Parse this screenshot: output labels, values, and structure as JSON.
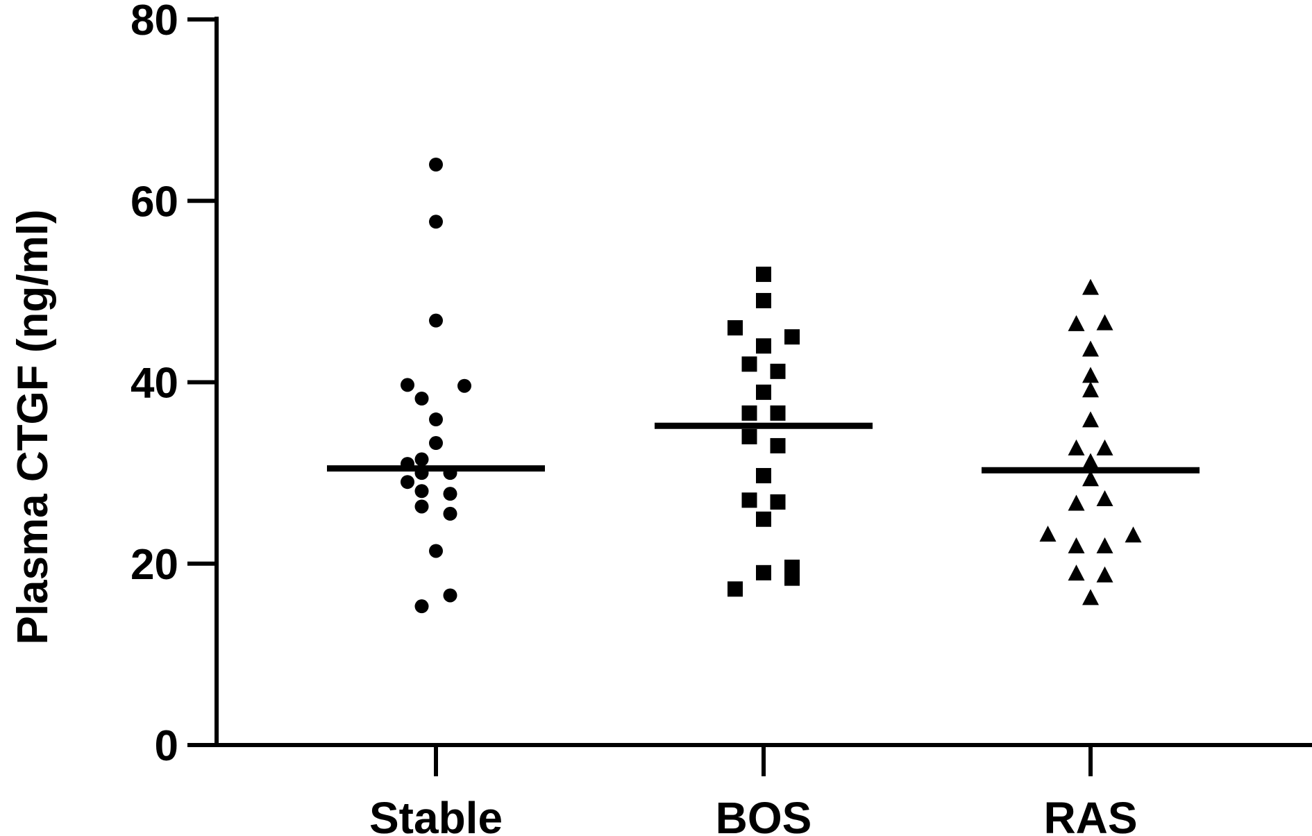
{
  "chart_data": {
    "type": "scatter",
    "chart_subtype": "dot-plot",
    "title": "",
    "xlabel": "",
    "ylabel": "Plasma CTGF (ng/ml)",
    "ylim": [
      0,
      80
    ],
    "yticks": [
      0,
      20,
      40,
      60,
      80
    ],
    "grid": false,
    "legend": "none",
    "categories": [
      "Stable",
      "BOS",
      "RAS"
    ],
    "series": [
      {
        "category": "Stable",
        "marker": "circle",
        "median": 30.5,
        "points": [
          {
            "offset": 0,
            "y": 64
          },
          {
            "offset": 0,
            "y": 57.7
          },
          {
            "offset": 0,
            "y": 46.8
          },
          {
            "offset": -1,
            "y": 39.7
          },
          {
            "offset": 1,
            "y": 39.6
          },
          {
            "offset": -0.5,
            "y": 38.2
          },
          {
            "offset": 0,
            "y": 35.9
          },
          {
            "offset": 0,
            "y": 33.3
          },
          {
            "offset": -1,
            "y": 31
          },
          {
            "offset": -0.5,
            "y": 31.5
          },
          {
            "offset": 0.5,
            "y": 30
          },
          {
            "offset": -0.5,
            "y": 30
          },
          {
            "offset": -1,
            "y": 29
          },
          {
            "offset": -0.5,
            "y": 28
          },
          {
            "offset": 0.5,
            "y": 27.7
          },
          {
            "offset": -0.5,
            "y": 26.3
          },
          {
            "offset": 0.5,
            "y": 25.5
          },
          {
            "offset": 0,
            "y": 21.4
          },
          {
            "offset": 0.5,
            "y": 16.5
          },
          {
            "offset": -0.5,
            "y": 15.3
          }
        ]
      },
      {
        "category": "BOS",
        "marker": "square",
        "median": 35.2,
        "points": [
          {
            "offset": 0,
            "y": 51.9
          },
          {
            "offset": 0,
            "y": 49
          },
          {
            "offset": -1,
            "y": 46
          },
          {
            "offset": 1,
            "y": 45
          },
          {
            "offset": 0,
            "y": 44
          },
          {
            "offset": -0.5,
            "y": 42
          },
          {
            "offset": 0.5,
            "y": 41.2
          },
          {
            "offset": 0,
            "y": 38.9
          },
          {
            "offset": -0.5,
            "y": 36.6
          },
          {
            "offset": 0.5,
            "y": 36.6
          },
          {
            "offset": -0.5,
            "y": 34
          },
          {
            "offset": 0.5,
            "y": 33
          },
          {
            "offset": 0,
            "y": 29.7
          },
          {
            "offset": -0.5,
            "y": 27
          },
          {
            "offset": 0.5,
            "y": 26.8
          },
          {
            "offset": 0,
            "y": 24.9
          },
          {
            "offset": 1,
            "y": 19.6
          },
          {
            "offset": 1,
            "y": 18.4
          },
          {
            "offset": 0,
            "y": 19
          },
          {
            "offset": -1,
            "y": 17.2
          }
        ]
      },
      {
        "category": "RAS",
        "marker": "triangle",
        "median": 30.3,
        "points": [
          {
            "offset": 0,
            "y": 50.4
          },
          {
            "offset": -0.5,
            "y": 46.4
          },
          {
            "offset": 0.5,
            "y": 46.5
          },
          {
            "offset": 0,
            "y": 43.6
          },
          {
            "offset": 0,
            "y": 40.7
          },
          {
            "offset": 0,
            "y": 39.1
          },
          {
            "offset": 0,
            "y": 35.8
          },
          {
            "offset": -0.5,
            "y": 32.7
          },
          {
            "offset": 0.5,
            "y": 32.7
          },
          {
            "offset": 0,
            "y": 31.2
          },
          {
            "offset": 0,
            "y": 29.3
          },
          {
            "offset": -0.5,
            "y": 26.6
          },
          {
            "offset": 0.5,
            "y": 27.1
          },
          {
            "offset": -1.5,
            "y": 23.2
          },
          {
            "offset": 1.5,
            "y": 23.1
          },
          {
            "offset": -0.5,
            "y": 21.9
          },
          {
            "offset": 0.5,
            "y": 21.9
          },
          {
            "offset": -0.5,
            "y": 18.9
          },
          {
            "offset": 0.5,
            "y": 18.7
          },
          {
            "offset": 0,
            "y": 16.2
          }
        ]
      }
    ]
  }
}
